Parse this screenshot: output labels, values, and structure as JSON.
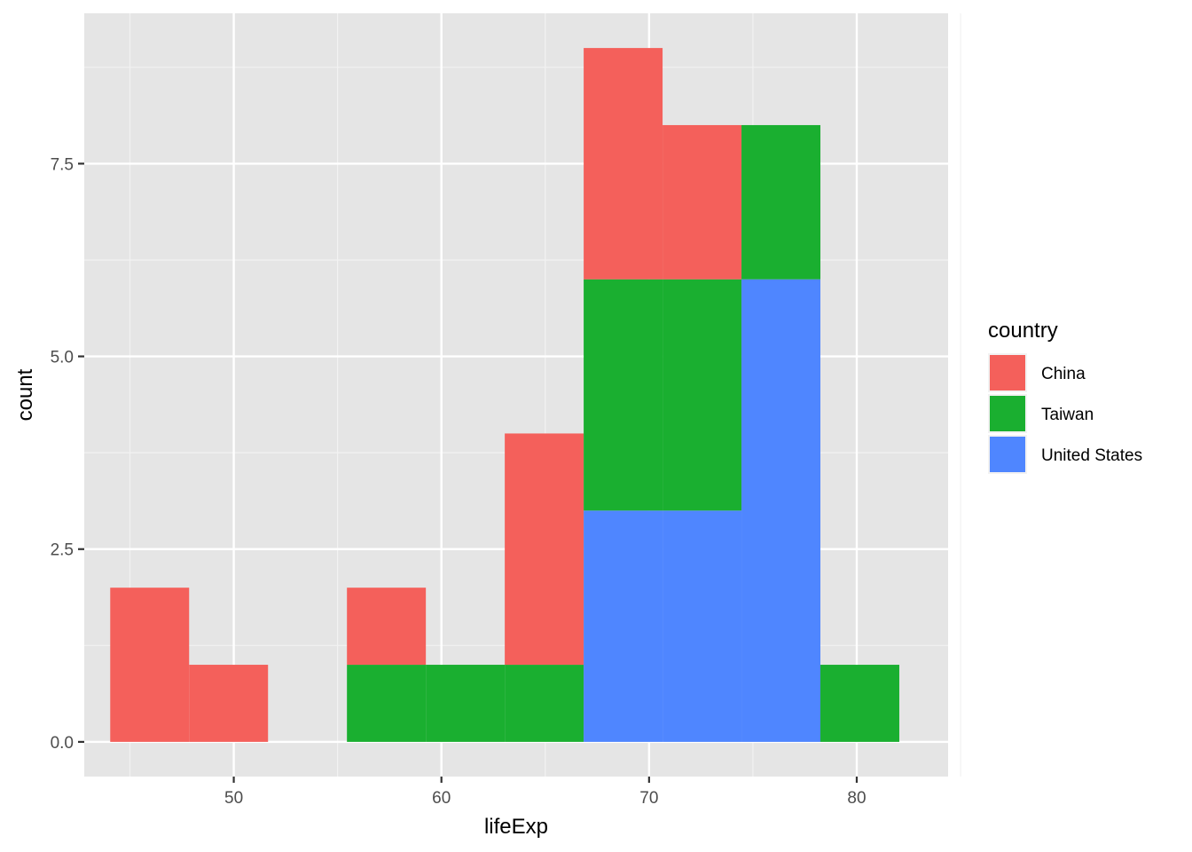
{
  "chart_data": {
    "type": "bar",
    "subtype": "stacked-histogram",
    "xlabel": "lifeExp",
    "ylabel": "count",
    "xlim": [
      42.8,
      84.4
    ],
    "ylim": [
      -0.45,
      9.45
    ],
    "x_ticks": [
      50,
      60,
      70,
      80
    ],
    "x_tick_labels": [
      "50",
      "60",
      "70",
      "80"
    ],
    "y_ticks": [
      0,
      2.5,
      5,
      7.5
    ],
    "y_tick_labels": [
      "0.0",
      "2.5",
      "5.0",
      "7.5"
    ],
    "grid": true,
    "legend_position": "right",
    "legend_title": "country",
    "bin_edges": [
      44.05,
      47.85,
      51.65,
      55.45,
      59.25,
      63.05,
      66.85,
      70.65,
      74.45,
      78.25,
      82.05
    ],
    "series": [
      {
        "name": "United States",
        "color": "#4f86ff",
        "values": [
          0,
          0,
          0,
          0,
          0,
          0,
          3,
          3,
          6,
          0
        ]
      },
      {
        "name": "Taiwan",
        "color": "#1aaf30",
        "values": [
          0,
          0,
          0,
          1,
          1,
          1,
          3,
          3,
          2,
          1
        ]
      },
      {
        "name": "China",
        "color": "#f4605b",
        "values": [
          2,
          1,
          0,
          1,
          0,
          3,
          3,
          2,
          0,
          0
        ]
      }
    ],
    "legend_order": [
      "China",
      "Taiwan",
      "United States"
    ]
  }
}
